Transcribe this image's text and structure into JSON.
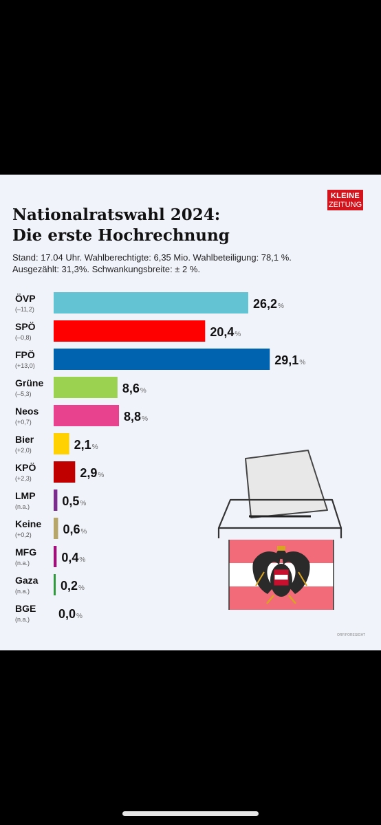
{
  "logo": {
    "line1": "KLEINE",
    "line2": "ZEITUNG"
  },
  "title_line1": "Nationalratswahl 2024:",
  "title_line2": "Die erste Hochrechnung",
  "subtitle_line1": "Stand:  17.04 Uhr. Wahlberechtigte: 6,35 Mio. Wahlbeteiligung: 78,1 %.",
  "subtitle_line2": "Ausgezählt: 31,3%. Schwankungsbreite: ± 2 %.",
  "source": "ORF/FORESIGHT",
  "chart_data": {
    "type": "bar",
    "orientation": "horizontal",
    "unit": "%",
    "categories": [
      "ÖVP",
      "SPÖ",
      "FPÖ",
      "Grüne",
      "Neos",
      "Bier",
      "KPÖ",
      "LMP",
      "Keine",
      "MFG",
      "Gaza",
      "BGE"
    ],
    "changes": [
      "(–11,2)",
      "(–0,8)",
      "(+13,0)",
      "(–5,3)",
      "(+0,7)",
      "(+2,0)",
      "(+2,3)",
      "(n.a.)",
      "(+0,2)",
      "(n.a.)",
      "(n.a.)",
      "(n.a.)"
    ],
    "values": [
      26.2,
      20.4,
      29.1,
      8.6,
      8.8,
      2.1,
      2.9,
      0.5,
      0.6,
      0.4,
      0.2,
      0.0
    ],
    "value_labels": [
      "26,2",
      "20,4",
      "29,1",
      "8,6",
      "8,8",
      "2,1",
      "2,9",
      "0,5",
      "0,6",
      "0,4",
      "0,2",
      "0,0"
    ],
    "colors": [
      "#63c3d3",
      "#ff0000",
      "#0063b0",
      "#9bd24f",
      "#e8418d",
      "#ffd100",
      "#c00000",
      "#7b2d8e",
      "#b7a66a",
      "#a0107a",
      "#2e9a3c",
      "#999999"
    ],
    "xlim": [
      0,
      30
    ],
    "grid": false,
    "legend": "none"
  }
}
